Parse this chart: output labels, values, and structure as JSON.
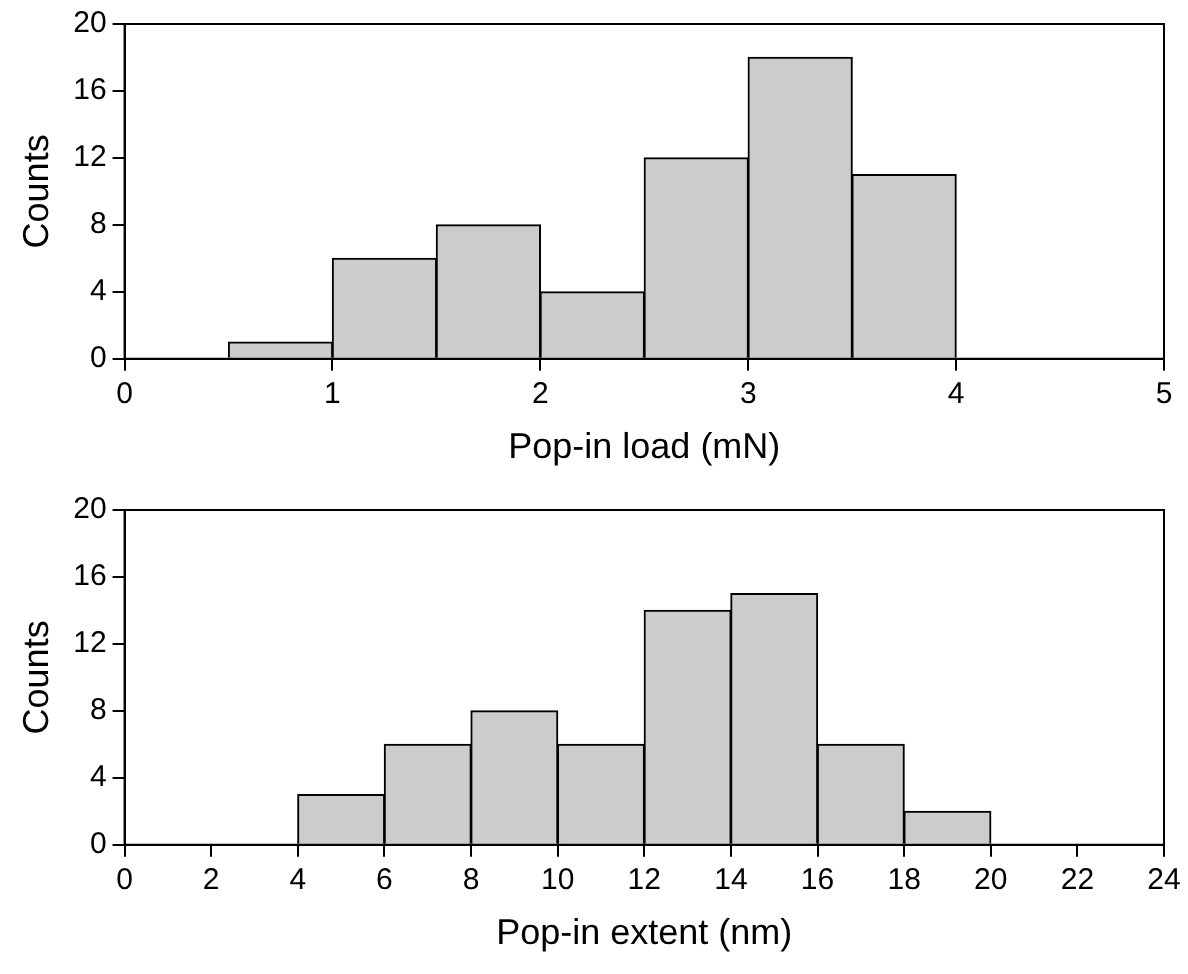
{
  "chart_data": [
    {
      "type": "histogram",
      "xlabel": "Pop-in load (mN)",
      "ylabel": "Counts",
      "bins": [
        0.5,
        1,
        1.5,
        2,
        2.5,
        3,
        3.5,
        4
      ],
      "values": [
        1,
        6,
        8,
        4,
        12,
        18,
        11
      ],
      "color": "#cccccc",
      "xlim": [
        0,
        5
      ],
      "xticks": [
        0,
        1,
        2,
        3,
        4,
        5
      ],
      "ylim": [
        0,
        20
      ],
      "yticks": [
        0,
        4,
        8,
        12,
        16,
        20
      ],
      "grid": false,
      "legend": false
    },
    {
      "type": "histogram",
      "xlabel": "Pop-in extent (nm)",
      "ylabel": "Counts",
      "bins": [
        4,
        6,
        8,
        10,
        12,
        14,
        16,
        18,
        20
      ],
      "values": [
        3,
        6,
        8,
        6,
        14,
        15,
        6,
        2
      ],
      "color": "#cccccc",
      "xlim": [
        0,
        24
      ],
      "xticks": [
        0,
        2,
        4,
        6,
        8,
        10,
        12,
        14,
        16,
        18,
        20,
        22,
        24
      ],
      "ylim": [
        0,
        20
      ],
      "yticks": [
        0,
        4,
        8,
        12,
        16,
        20
      ],
      "grid": false,
      "legend": false
    }
  ]
}
